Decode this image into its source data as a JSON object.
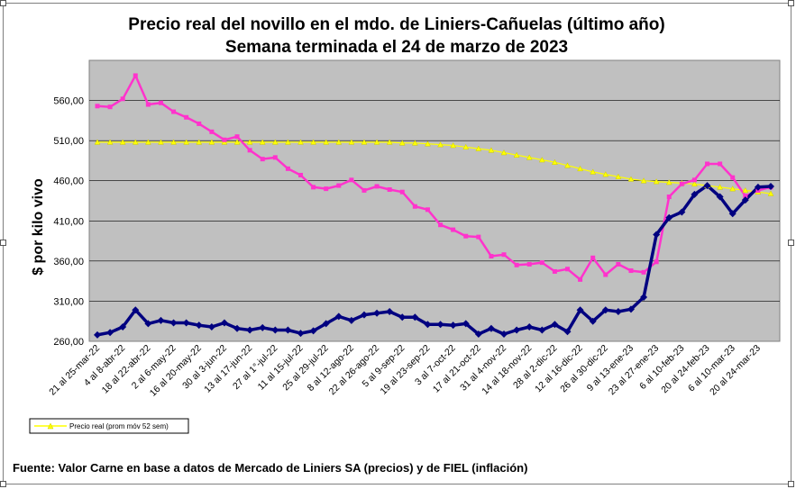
{
  "chart_data": {
    "type": "line",
    "title": "Precio real del novillo en el mdo. de Liniers-Cañuelas (último año)",
    "subtitle": "Semana terminada el 24 de marzo de 2023",
    "ylabel": "$ por kilo vivo",
    "xlabel": "",
    "ylim": [
      260,
      610
    ],
    "yticks": [
      "260,00",
      "310,00",
      "360,00",
      "410,00",
      "460,00",
      "510,00",
      "560,00"
    ],
    "ytick_values": [
      260,
      310,
      360,
      410,
      460,
      510,
      560
    ],
    "grid": "horizontal",
    "legend_position": "bottom-left",
    "legend_entries": [
      "Precio real (prom móv 52 sem)"
    ],
    "x_tick_labels": [
      "21 al 25-mar-22",
      "4 al 8-abr-22",
      "18 al 22-abr-22",
      "2 al 6-may-22",
      "16 al 20-may-22",
      "30 al 3-jun-22",
      "13 al 17-jun-22",
      "27 al 1°-jul-22",
      "11 al 15-jul-22",
      "25 al 29-jul-22",
      "8 al 12-ago-22",
      "22 al 26-ago-22",
      "5 al 9-sep-22",
      "19 al 23-sep-22",
      "3 al 7-oct-22",
      "17 al 21-oct-22",
      "31 al 4-nov-22",
      "14 al 18-nov-22",
      "28 al 2-dic-22",
      "12 al 16-dic-22",
      "26 al 30-dic-22",
      "9 al 13-ene-23",
      "23 al 27-ene-23",
      "6 al 10-feb-23",
      "20 al 24-feb-23",
      "6 al 10-mar-23",
      "20 al 24-mar-23"
    ],
    "series": [
      {
        "color": "#ff33cc",
        "values": [
          553,
          552,
          562,
          591,
          555,
          557,
          546,
          539,
          531,
          521,
          511,
          515,
          498,
          487,
          489,
          475,
          467,
          452,
          450,
          454,
          461,
          448,
          453,
          449,
          446,
          428,
          424,
          405,
          399,
          391,
          390,
          366,
          368,
          355,
          356,
          358,
          347,
          350,
          337,
          364,
          343,
          356,
          348,
          346,
          359,
          440,
          456,
          461,
          481,
          481,
          464,
          441,
          448,
          452
        ]
      },
      {
        "color": "#000080",
        "values": [
          268,
          271,
          278,
          299,
          282,
          286,
          283,
          283,
          280,
          278,
          283,
          276,
          274,
          277,
          274,
          274,
          270,
          273,
          282,
          291,
          286,
          293,
          295,
          297,
          290,
          290,
          281,
          281,
          280,
          282,
          269,
          276,
          269,
          274,
          278,
          274,
          281,
          272,
          299,
          285,
          299,
          297,
          300,
          315,
          393,
          414,
          421,
          443,
          454,
          440,
          419,
          436,
          452,
          453
        ]
      },
      {
        "name": "Precio real (prom móv 52 sem)",
        "color": "#ffff00",
        "values": [
          508,
          508,
          508,
          508,
          508,
          508,
          508,
          508,
          508,
          508,
          508,
          508,
          508,
          508,
          508,
          508,
          508,
          508,
          508,
          508,
          508,
          508,
          508,
          508,
          507,
          507,
          506,
          505,
          504,
          502,
          500,
          498,
          495,
          492,
          489,
          486,
          483,
          479,
          475,
          471,
          468,
          465,
          462,
          460,
          459,
          458,
          457,
          456,
          454,
          452,
          450,
          448,
          446,
          444
        ]
      }
    ]
  },
  "source_note": "Fuente: Valor Carne en base a datos de Mercado de Liniers SA (precios) y de FIEL (inflación)"
}
